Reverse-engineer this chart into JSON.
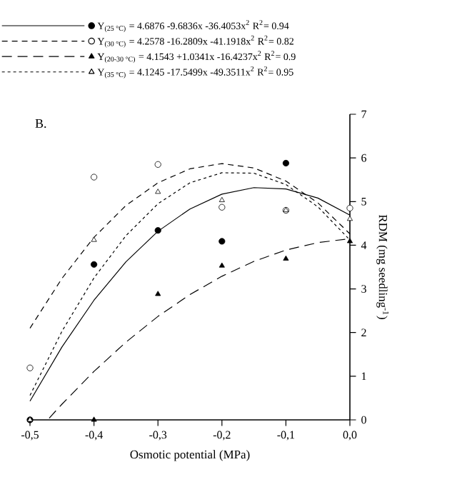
{
  "chart_data": {
    "type": "scatter",
    "xlabel": "Osmotic potential  (MPa)",
    "ylabel": "RDM (mg seedling$^{-1}$)",
    "annotations": [
      "B."
    ],
    "xlim": [
      -0.5,
      0
    ],
    "ylim": [
      0,
      7
    ],
    "xticks": [
      {
        "value": -0.5,
        "label": "-0,5"
      },
      {
        "value": -0.4,
        "label": "-0,4"
      },
      {
        "value": -0.3,
        "label": "-0,3"
      },
      {
        "value": -0.2,
        "label": "-0,2"
      },
      {
        "value": -0.1,
        "label": "-0,1"
      },
      {
        "value": 0,
        "label": "0,0"
      }
    ],
    "yticks": [
      0,
      1,
      2,
      3,
      4,
      5,
      6,
      7
    ],
    "legend": "top",
    "grid": false,
    "series": [
      {
        "type": "line",
        "name": "Y$_{(25 °C)}$ = 4.6876 -9.6836x -36.4053x$^{2}$     R$^{2}$= 0.94",
        "color": "#000000",
        "line_style": "solid",
        "x": [
          -0.5,
          -0.45,
          -0.4,
          -0.35,
          -0.3,
          -0.25,
          -0.2,
          -0.15,
          -0.1,
          -0.05,
          0
        ],
        "values": [
          0.43,
          1.67,
          2.74,
          3.62,
          4.32,
          4.83,
          5.17,
          5.32,
          5.29,
          5.08,
          4.69
        ]
      },
      {
        "type": "line",
        "name": "Y$_{(30 °C)}$ = 4.2578 -16.2809x -41.1918x$^{2}$     R$^{2}$= 0.82",
        "color": "#000000",
        "line_style": "dashed",
        "x": [
          -0.5,
          -0.45,
          -0.4,
          -0.35,
          -0.3,
          -0.25,
          -0.2,
          -0.15,
          -0.1,
          -0.05,
          0
        ],
        "values": [
          2.1,
          3.24,
          4.18,
          4.91,
          5.43,
          5.75,
          5.87,
          5.77,
          5.47,
          4.97,
          4.26
        ]
      },
      {
        "type": "line",
        "name": "Y$_{(20-30 °C)}$ = 4.1543 +1.0341x -16.4237x$^{2}$ R$^{2}$= 0.9",
        "color": "#000000",
        "line_style": "dashed",
        "x": [
          -0.47,
          -0.45,
          -0.4,
          -0.35,
          -0.3,
          -0.25,
          -0.2,
          -0.15,
          -0.1,
          -0.05,
          0
        ],
        "values": [
          0.04,
          0.36,
          1.11,
          1.78,
          2.37,
          2.87,
          3.29,
          3.63,
          3.89,
          4.06,
          4.15
        ]
      },
      {
        "type": "line",
        "name": "Y$_{(35 °C)}$ = 4.1245 -17.5499x -49.3511x$^{2}$     R$^{2}$= 0.95",
        "color": "#000000",
        "line_style": "dashed",
        "x": [
          -0.5,
          -0.45,
          -0.4,
          -0.35,
          -0.3,
          -0.25,
          -0.2,
          -0.15,
          -0.1,
          -0.05,
          0
        ],
        "values": [
          0.56,
          2.03,
          3.25,
          4.22,
          4.95,
          5.43,
          5.66,
          5.65,
          5.39,
          4.88,
          4.12
        ]
      },
      {
        "marker": "circle",
        "color": "#000000",
        "x": [
          -0.5,
          -0.4,
          -0.3,
          -0.2,
          -0.1
        ],
        "values": [
          0,
          3.56,
          4.34,
          4.09,
          5.88
        ]
      },
      {
        "marker": "circle",
        "color": "#ffffff",
        "x": [
          -0.5,
          -0.4,
          -0.3,
          -0.2,
          -0.1,
          0
        ],
        "values": [
          1.19,
          5.56,
          5.85,
          4.87,
          4.8,
          4.85
        ]
      },
      {
        "marker": "triangle",
        "color": "#000000",
        "x": [
          -0.5,
          -0.4,
          -0.3,
          -0.2,
          -0.1,
          0
        ],
        "values": [
          0,
          0,
          2.88,
          3.53,
          3.69,
          4.09
        ]
      },
      {
        "marker": "triangle",
        "color": "#ffffff",
        "x": [
          -0.5,
          -0.4,
          -0.3,
          -0.2,
          -0.1,
          0
        ],
        "values": [
          0,
          4.12,
          5.22,
          5.03,
          4.8,
          4.6
        ]
      }
    ]
  }
}
